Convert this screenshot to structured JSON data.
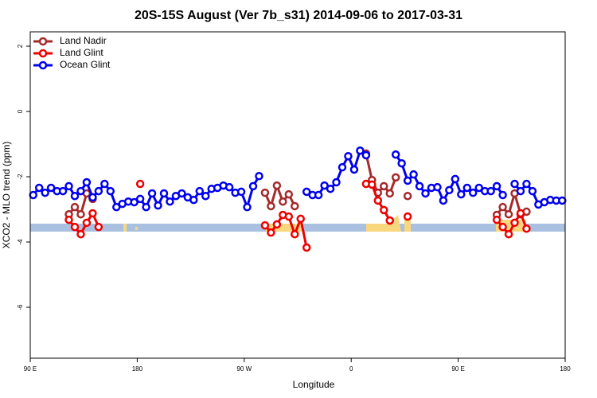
{
  "chart_data": {
    "type": "line",
    "title": "20S-15S August (Ver 7b_s31)   2014-09-06 to 2017-03-31",
    "x_label": "Longitude",
    "y_label": "XCO2 - MLO trend (ppm)",
    "xlim": [
      90,
      540
    ],
    "ylim": [
      -7.56,
      2.44
    ],
    "xticks": [
      {
        "value": 90,
        "label": "90 E"
      },
      180,
      {
        "value": 270,
        "label": "90 W"
      },
      {
        "value": 360,
        "label": "0"
      },
      {
        "value": 450,
        "label": "90 E"
      },
      {
        "value": 540,
        "label": "180"
      }
    ],
    "yticks": [
      2,
      0,
      -2,
      -4,
      -6
    ],
    "legend": "top-left",
    "x": [
      92.5,
      97.5,
      102.5,
      107.5,
      112.5,
      117.5,
      122.5,
      127.5,
      132.5,
      137.5,
      142.5,
      147.5,
      152.5,
      157.5,
      162.5,
      167.5,
      172.5,
      177.5,
      182.5,
      187.5,
      192.5,
      197.5,
      202.5,
      207.5,
      212.5,
      217.5,
      222.5,
      227.5,
      232.5,
      237.5,
      242.5,
      247.5,
      252.5,
      257.5,
      262.5,
      267.5,
      272.5,
      277.5,
      282.5,
      287.5,
      292.5,
      297.5,
      302.5,
      307.5,
      312.5,
      317.5,
      322.5,
      327.5,
      332.5,
      337.5,
      342.5,
      347.5,
      352.5,
      357.5,
      362.5,
      367.5,
      372.5,
      377.5,
      382.5,
      387.5,
      392.5,
      397.5,
      402.5,
      407.5,
      412.5,
      417.5,
      422.5,
      427.5,
      432.5,
      437.5,
      442.5,
      447.5,
      452.5,
      457.5,
      462.5,
      467.5,
      472.5,
      477.5,
      482.5,
      487.5,
      492.5,
      497.5,
      502.5,
      507.5,
      512.5,
      517.5,
      522.5,
      527.5,
      532.5,
      537.5
    ],
    "series": [
      {
        "name": "Land Nadir",
        "color": "#a52a2a",
        "values": [
          null,
          null,
          null,
          null,
          null,
          null,
          -3.15,
          -2.93,
          -3.15,
          -2.51,
          -2.68,
          null,
          null,
          null,
          null,
          null,
          null,
          null,
          null,
          null,
          null,
          null,
          null,
          null,
          null,
          null,
          null,
          null,
          null,
          null,
          null,
          null,
          null,
          null,
          null,
          null,
          null,
          null,
          null,
          -2.49,
          -2.9,
          -2.27,
          -2.76,
          -2.54,
          -2.9,
          null,
          null,
          null,
          null,
          null,
          null,
          null,
          null,
          null,
          null,
          null,
          -1.29,
          -2.1,
          -2.49,
          -2.29,
          -2.51,
          -2.02,
          null,
          -2.59,
          null,
          null,
          null,
          null,
          null,
          null,
          null,
          null,
          null,
          null,
          null,
          null,
          null,
          null,
          -3.17,
          -2.93,
          -3.15,
          -2.51,
          -3.15,
          -3.07,
          null,
          null,
          null,
          null,
          null,
          null
        ]
      },
      {
        "name": "Land Glint",
        "color": "#ee0000",
        "values": [
          null,
          null,
          null,
          null,
          null,
          null,
          -3.32,
          -3.54,
          -3.76,
          -3.41,
          -3.12,
          -3.54,
          null,
          null,
          null,
          null,
          null,
          null,
          -2.22,
          null,
          null,
          null,
          null,
          null,
          null,
          null,
          null,
          null,
          null,
          null,
          null,
          null,
          null,
          null,
          null,
          null,
          null,
          null,
          null,
          -3.49,
          -3.71,
          -3.46,
          -3.17,
          -3.22,
          -3.76,
          -3.29,
          -4.17,
          null,
          null,
          null,
          null,
          null,
          null,
          null,
          null,
          null,
          -2.22,
          -2.24,
          -2.73,
          -3.02,
          -3.34,
          null,
          null,
          -3.22,
          null,
          null,
          null,
          null,
          null,
          null,
          null,
          null,
          null,
          null,
          null,
          null,
          null,
          null,
          -3.32,
          -3.54,
          -3.76,
          -3.41,
          -3.12,
          -3.59,
          null,
          null,
          null,
          null,
          null,
          null
        ]
      },
      {
        "name": "Ocean Glint",
        "color": "#0000ee",
        "values": [
          -2.56,
          -2.34,
          -2.49,
          -2.34,
          -2.44,
          -2.44,
          -2.29,
          -2.59,
          -2.44,
          -2.17,
          -2.63,
          -2.44,
          -2.22,
          -2.44,
          -2.93,
          -2.83,
          -2.76,
          -2.78,
          -2.68,
          -2.93,
          -2.51,
          -2.88,
          -2.51,
          -2.76,
          -2.59,
          -2.51,
          -2.63,
          -2.71,
          -2.44,
          -2.59,
          -2.37,
          -2.34,
          -2.27,
          -2.32,
          -2.49,
          -2.46,
          -2.93,
          -2.29,
          -1.98,
          null,
          null,
          null,
          null,
          null,
          null,
          null,
          -2.46,
          -2.56,
          -2.56,
          -2.27,
          -2.37,
          -2.17,
          -1.71,
          -1.37,
          -1.78,
          -1.2,
          -1.34,
          null,
          null,
          null,
          null,
          -1.32,
          -1.59,
          -2.12,
          -1.93,
          -2.29,
          -2.51,
          -2.34,
          -2.32,
          -2.73,
          -2.41,
          -2.07,
          -2.54,
          -2.34,
          -2.49,
          -2.34,
          -2.44,
          -2.44,
          -2.29,
          -2.56,
          null,
          -2.22,
          -2.44,
          -2.22,
          -2.44,
          -2.85,
          -2.78,
          -2.71,
          -2.73,
          -2.73
        ]
      }
    ]
  }
}
